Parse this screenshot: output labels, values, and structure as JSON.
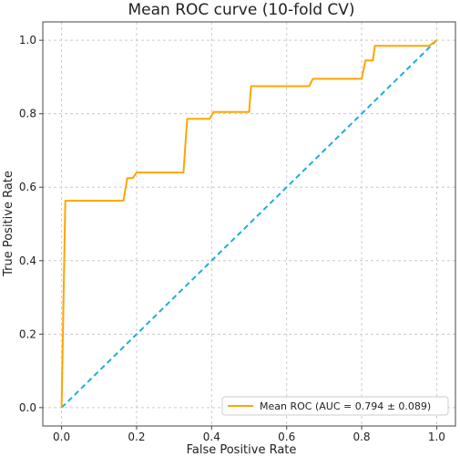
{
  "chart_data": {
    "type": "line",
    "title": "Mean ROC curve (10-fold CV)",
    "xlabel": "False Positive Rate",
    "ylabel": "True Positive Rate",
    "xlim": [
      -0.05,
      1.05
    ],
    "ylim": [
      -0.05,
      1.05
    ],
    "xticks": [
      "0.0",
      "0.2",
      "0.4",
      "0.6",
      "0.8",
      "1.0"
    ],
    "yticks": [
      "0.0",
      "0.2",
      "0.4",
      "0.6",
      "0.8",
      "1.0"
    ],
    "grid": true,
    "legend_position": "lower-right",
    "series": [
      {
        "name": "Mean ROC (AUC = 0.794 ± 0.089)",
        "color": "#FFA500",
        "style": "solid",
        "x": [
          0.0,
          0.01,
          0.01,
          0.165,
          0.175,
          0.19,
          0.2,
          0.325,
          0.335,
          0.395,
          0.405,
          0.5,
          0.505,
          0.66,
          0.67,
          0.8,
          0.81,
          0.83,
          0.835,
          0.98,
          1.0
        ],
        "y": [
          0.0,
          0.563,
          0.563,
          0.563,
          0.625,
          0.625,
          0.64,
          0.64,
          0.786,
          0.786,
          0.805,
          0.805,
          0.875,
          0.875,
          0.895,
          0.895,
          0.945,
          0.945,
          0.985,
          0.985,
          1.0
        ]
      },
      {
        "name": "",
        "color": "#1EAEDB",
        "style": "dashed",
        "x": [
          0.0,
          1.0
        ],
        "y": [
          0.0,
          1.0
        ]
      }
    ]
  }
}
